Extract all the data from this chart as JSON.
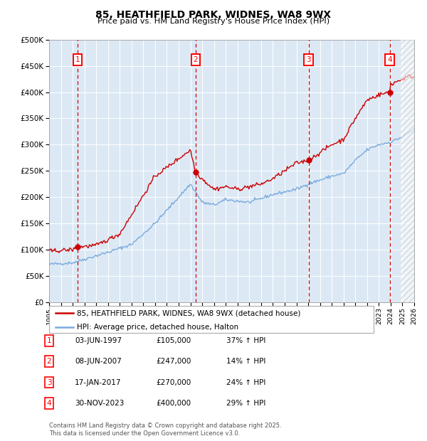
{
  "title": "85, HEATHFIELD PARK, WIDNES, WA8 9WX",
  "subtitle": "Price paid vs. HM Land Registry's House Price Index (HPI)",
  "transactions": [
    {
      "num": 1,
      "date": "03-JUN-1997",
      "price": 105000,
      "hpi_diff": "37% ↑ HPI",
      "x_year": 1997.42
    },
    {
      "num": 2,
      "date": "08-JUN-2007",
      "price": 247000,
      "hpi_diff": "14% ↑ HPI",
      "x_year": 2007.44
    },
    {
      "num": 3,
      "date": "17-JAN-2017",
      "price": 270000,
      "hpi_diff": "24% ↑ HPI",
      "x_year": 2017.04
    },
    {
      "num": 4,
      "date": "30-NOV-2023",
      "price": 400000,
      "hpi_diff": "29% ↑ HPI",
      "x_year": 2023.92
    }
  ],
  "ylabel_ticks": [
    "£0",
    "£50K",
    "£100K",
    "£150K",
    "£200K",
    "£250K",
    "£300K",
    "£350K",
    "£400K",
    "£450K",
    "£500K"
  ],
  "ytick_values": [
    0,
    50000,
    100000,
    150000,
    200000,
    250000,
    300000,
    350000,
    400000,
    450000,
    500000
  ],
  "xmin": 1995,
  "xmax": 2026,
  "ymin": 0,
  "ymax": 500000,
  "bg_color": "#dce9f5",
  "red_line_color": "#cc0000",
  "blue_line_color": "#7aaadd",
  "dashed_vline_color": "#cc0000",
  "legend_label_red": "85, HEATHFIELD PARK, WIDNES, WA8 9WX (detached house)",
  "legend_label_blue": "HPI: Average price, detached house, Halton",
  "footer": "Contains HM Land Registry data © Crown copyright and database right 2025.\nThis data is licensed under the Open Government Licence v3.0.",
  "table_rows": [
    {
      "num": "1",
      "date": "03-JUN-1997",
      "price": "£105,000",
      "hpi": "37% ↑ HPI"
    },
    {
      "num": "2",
      "date": "08-JUN-2007",
      "price": "£247,000",
      "hpi": "14% ↑ HPI"
    },
    {
      "num": "3",
      "date": "17-JAN-2017",
      "price": "£270,000",
      "hpi": "24% ↑ HPI"
    },
    {
      "num": "4",
      "date": "30-NOV-2023",
      "price": "£400,000",
      "hpi": "29% ↑ HPI"
    }
  ]
}
